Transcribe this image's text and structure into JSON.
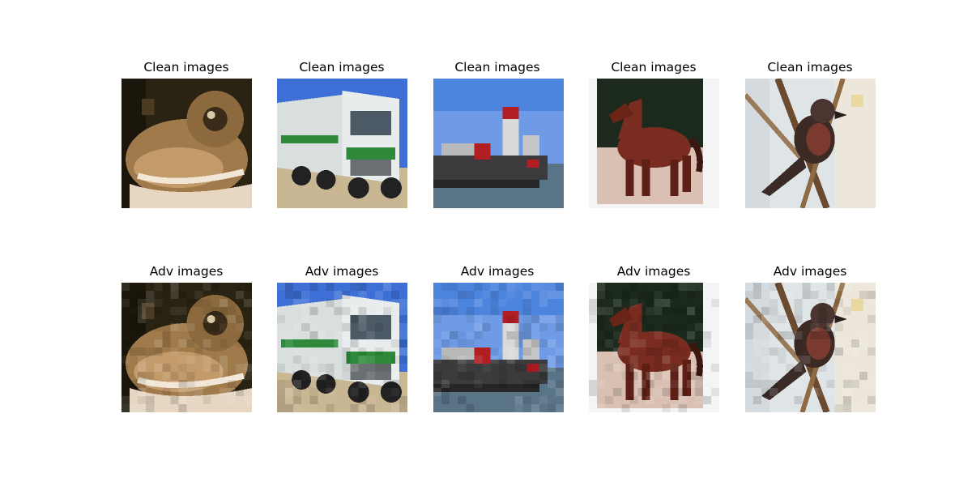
{
  "rows": [
    {
      "label": "Clean images",
      "variant": "clean"
    },
    {
      "label": "Adv images",
      "variant": "adv"
    }
  ],
  "subjects": [
    "frog",
    "truck",
    "ship",
    "horse",
    "bird"
  ],
  "palette": {
    "frog_dark": "#2a2212",
    "frog_tan": "#a07a4a",
    "frog_light": "#e6d6c2",
    "truck_sky": "#3d6fd6",
    "truck_white": "#e8ecec",
    "truck_green": "#2e8a3a",
    "truck_road": "#c9b692",
    "ship_sky": "#6f9be6",
    "ship_water": "#5a7487",
    "ship_red": "#b21e22",
    "horse_dark": "#1b2a1c",
    "horse_brown": "#7a2c20",
    "horse_ground": "#d9c0b3",
    "bird_bg": "#dfe4e7",
    "bird_branch": "#6b4a2e",
    "bird_body": "#3c2a25"
  }
}
